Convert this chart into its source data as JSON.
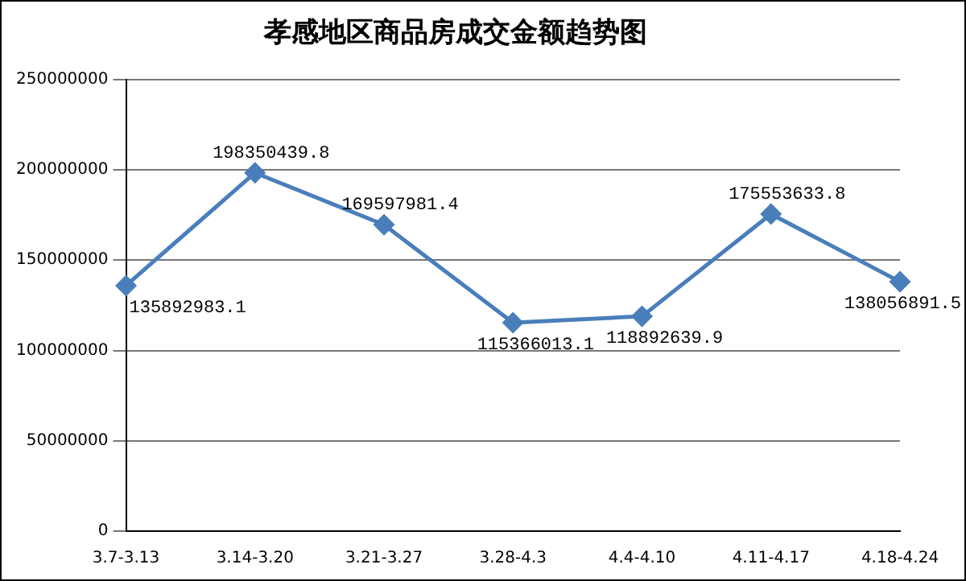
{
  "chart_data": {
    "type": "line",
    "title": "孝感地区商品房成交金额趋势图",
    "categories": [
      "3.7-3.13",
      "3.14-3.20",
      "3.21-3.27",
      "3.28-4.3",
      "4.4-4.10",
      "4.11-4.17",
      "4.18-4.24"
    ],
    "series": [
      {
        "color": "#4a7ebb",
        "values": [
          135892983.1,
          198350439.8,
          169597981.4,
          115366013.1,
          118892639.9,
          175553633.8,
          138056891.5
        ]
      }
    ],
    "ylim": [
      0,
      250000000
    ],
    "yticks": [
      0,
      50000000,
      100000000,
      150000000,
      200000000,
      250000000
    ],
    "grid": "y",
    "legend": false,
    "marker": "diamond",
    "line_style": "solid",
    "data_labels": true
  }
}
